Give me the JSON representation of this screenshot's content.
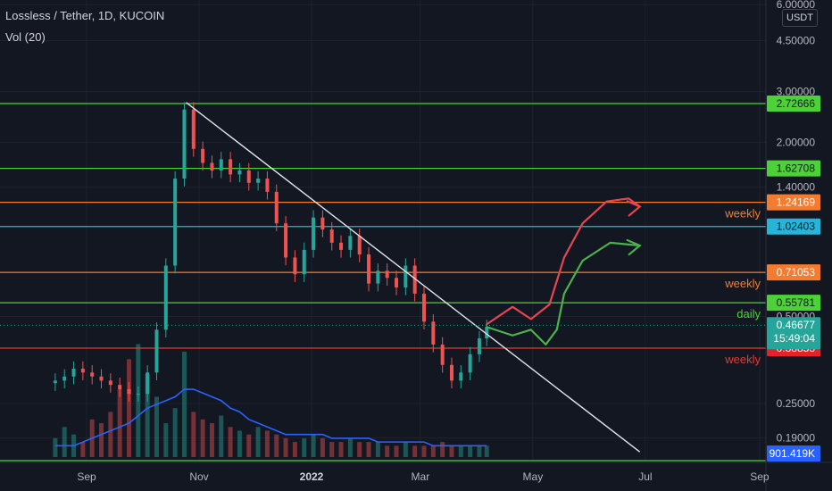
{
  "header": {
    "title": "Lossless / Tether, 1D, KUCOIN",
    "volume_label": "Vol (20)"
  },
  "price_axis": {
    "unit": "USDT",
    "tick_labels": [
      "6.00000",
      "4.50000",
      "3.00000",
      "2.00000",
      "1.40000",
      "0.50000",
      "0.25000",
      "0.19000"
    ]
  },
  "chart_data": {
    "type": "candlestick",
    "y_scale": "log",
    "ylim": [
      0.17,
      6.0
    ],
    "x_axis_labels": [
      "Sep",
      "Nov",
      "2022",
      "Mar",
      "May",
      "Jul",
      "Sep"
    ],
    "x_axis_dates": [
      "2021-09-01",
      "2021-11-01",
      "2022-01-01",
      "2022-03-01",
      "2022-05-01",
      "2022-07-01",
      "2022-09-01"
    ],
    "horizontal_levels": [
      {
        "price": 2.72666,
        "label": "2.72666",
        "color": "#4cd137",
        "annotation": ""
      },
      {
        "price": 1.62708,
        "label": "1.62708",
        "color": "#4cd137",
        "annotation": ""
      },
      {
        "price": 1.24169,
        "label": "1.24169",
        "color": "#f57c2e",
        "annotation": "weekly"
      },
      {
        "price": 1.02403,
        "label": "1.02403",
        "color": "#26b4d8",
        "annotation": ""
      },
      {
        "price": 0.71053,
        "label": "0.71053",
        "color": "#f57c2e",
        "annotation": "weekly"
      },
      {
        "price": 0.55781,
        "label": "0.55781",
        "color": "#4cd137",
        "annotation": "daily"
      },
      {
        "price": 0.38853,
        "label": "0.38853",
        "color": "#e53935",
        "annotation": "weekly"
      }
    ],
    "current_price": {
      "value": 0.46677,
      "label": "0.46677",
      "countdown": "15:49:04",
      "color": "#26a69a"
    },
    "volume_badge": {
      "label": "901.419K",
      "color": "#2962ff"
    },
    "trendline": {
      "start": {
        "date": "2021-10-25",
        "price": 2.75
      },
      "end": {
        "date": "2022-06-28",
        "price": 0.17
      }
    },
    "candles": [
      {
        "date": "2021-08-15",
        "close": 0.3
      },
      {
        "date": "2021-08-20",
        "close": 0.31
      },
      {
        "date": "2021-08-25",
        "close": 0.33
      },
      {
        "date": "2021-08-30",
        "close": 0.32
      },
      {
        "date": "2021-09-04",
        "close": 0.31
      },
      {
        "date": "2021-09-09",
        "close": 0.3
      },
      {
        "date": "2021-09-14",
        "close": 0.29
      },
      {
        "date": "2021-09-19",
        "close": 0.28
      },
      {
        "date": "2021-09-24",
        "close": 0.27
      },
      {
        "date": "2021-09-29",
        "close": 0.27
      },
      {
        "date": "2021-10-04",
        "close": 0.32
      },
      {
        "date": "2021-10-09",
        "close": 0.45
      },
      {
        "date": "2021-10-14",
        "close": 0.75
      },
      {
        "date": "2021-10-19",
        "close": 1.5
      },
      {
        "date": "2021-10-24",
        "close": 2.6
      },
      {
        "date": "2021-10-29",
        "close": 1.9
      },
      {
        "date": "2021-11-03",
        "close": 1.7
      },
      {
        "date": "2021-11-08",
        "close": 1.6
      },
      {
        "date": "2021-11-13",
        "close": 1.75
      },
      {
        "date": "2021-11-18",
        "close": 1.55
      },
      {
        "date": "2021-11-23",
        "close": 1.6
      },
      {
        "date": "2021-11-28",
        "close": 1.45
      },
      {
        "date": "2021-12-03",
        "close": 1.5
      },
      {
        "date": "2021-12-08",
        "close": 1.35
      },
      {
        "date": "2021-12-13",
        "close": 1.05
      },
      {
        "date": "2021-12-18",
        "close": 0.8
      },
      {
        "date": "2021-12-23",
        "close": 0.7
      },
      {
        "date": "2021-12-28",
        "close": 0.85
      },
      {
        "date": "2022-01-02",
        "close": 1.1
      },
      {
        "date": "2022-01-07",
        "close": 1.0
      },
      {
        "date": "2022-01-12",
        "close": 0.9
      },
      {
        "date": "2022-01-17",
        "close": 0.85
      },
      {
        "date": "2022-01-22",
        "close": 0.95
      },
      {
        "date": "2022-01-27",
        "close": 0.82
      },
      {
        "date": "2022-02-01",
        "close": 0.65
      },
      {
        "date": "2022-02-06",
        "close": 0.72
      },
      {
        "date": "2022-02-11",
        "close": 0.68
      },
      {
        "date": "2022-02-16",
        "close": 0.63
      },
      {
        "date": "2022-02-21",
        "close": 0.75
      },
      {
        "date": "2022-02-26",
        "close": 0.6
      },
      {
        "date": "2022-03-03",
        "close": 0.48
      },
      {
        "date": "2022-03-08",
        "close": 0.4
      },
      {
        "date": "2022-03-13",
        "close": 0.34
      },
      {
        "date": "2022-03-18",
        "close": 0.3
      },
      {
        "date": "2022-03-23",
        "close": 0.32
      },
      {
        "date": "2022-03-28",
        "close": 0.37
      },
      {
        "date": "2022-04-02",
        "close": 0.42
      },
      {
        "date": "2022-04-06",
        "close": 0.46
      }
    ],
    "volume": [
      5,
      8,
      6,
      4,
      10,
      9,
      12,
      18,
      26,
      30,
      22,
      16,
      9,
      13,
      28,
      12,
      10,
      9,
      11,
      8,
      7,
      6,
      8,
      7,
      6,
      5,
      4,
      5,
      6,
      5,
      4,
      4,
      5,
      4,
      4,
      4,
      3,
      3,
      4,
      3,
      3,
      3,
      4,
      3,
      3,
      3,
      3,
      3
    ],
    "volume_ma": [
      3,
      3,
      3,
      4,
      5,
      6,
      7,
      8,
      9,
      11,
      13,
      14,
      15,
      16,
      18,
      18,
      17,
      16,
      15,
      13,
      12,
      10,
      9,
      8,
      7,
      6,
      6,
      6,
      6,
      6,
      5,
      5,
      5,
      5,
      5,
      4,
      4,
      4,
      4,
      4,
      4,
      3,
      3,
      3,
      3,
      3,
      3,
      3
    ],
    "projection_paths": [
      {
        "color": "#e64553",
        "points": [
          {
            "date": "2022-04-06",
            "price": 0.47
          },
          {
            "date": "2022-04-20",
            "price": 0.54
          },
          {
            "date": "2022-04-30",
            "price": 0.49
          },
          {
            "date": "2022-05-10",
            "price": 0.55
          },
          {
            "date": "2022-05-18",
            "price": 0.8
          },
          {
            "date": "2022-05-28",
            "price": 1.05
          },
          {
            "date": "2022-06-10",
            "price": 1.25
          },
          {
            "date": "2022-06-22",
            "price": 1.28
          },
          {
            "date": "2022-06-28",
            "price": 1.2
          }
        ]
      },
      {
        "color": "#4cb24c",
        "points": [
          {
            "date": "2022-04-06",
            "price": 0.46
          },
          {
            "date": "2022-04-20",
            "price": 0.43
          },
          {
            "date": "2022-04-30",
            "price": 0.45
          },
          {
            "date": "2022-05-08",
            "price": 0.4
          },
          {
            "date": "2022-05-14",
            "price": 0.45
          },
          {
            "date": "2022-05-18",
            "price": 0.6
          },
          {
            "date": "2022-05-28",
            "price": 0.78
          },
          {
            "date": "2022-06-12",
            "price": 0.9
          },
          {
            "date": "2022-06-28",
            "price": 0.88
          }
        ]
      }
    ]
  }
}
